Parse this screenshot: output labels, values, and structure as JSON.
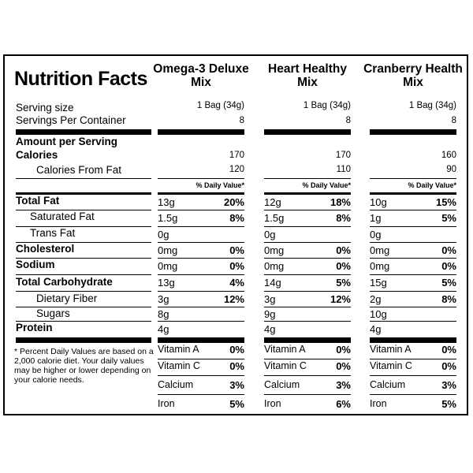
{
  "title": "Nutrition Facts",
  "labels": {
    "serving_size": "Serving size",
    "servings_per_container": "Servings Per Container",
    "amount_per_serving": "Amount per Serving",
    "calories": "Calories",
    "calories_from_fat": "Calories From Fat",
    "total_fat": "Total Fat",
    "saturated_fat": "Saturated Fat",
    "trans_fat": "Trans Fat",
    "cholesterol": "Cholesterol",
    "sodium": "Sodium",
    "total_carbohydrate": "Total Carbohydrate",
    "dietary_fiber": "Dietary Fiber",
    "sugars": "Sugars",
    "protein": "Protein"
  },
  "footnote": "* Percent Daily Values are based on a 2,000 calorie diet. Your daily values may be higher or lower depending on your calorie needs.",
  "products": [
    {
      "name": "Omega-3 Deluxe Mix",
      "serving_size": "1 Bag (34g)",
      "servings": "8",
      "calories": "170",
      "calories_from_fat": "120",
      "dv_header": "% Daily Value*",
      "total_fat": "13g",
      "total_fat_dv": "20%",
      "saturated_fat": "1.5g",
      "saturated_fat_dv": "8%",
      "trans_fat": "0g",
      "cholesterol": "0mg",
      "cholesterol_dv": "0%",
      "sodium": "0mg",
      "sodium_dv": "0%",
      "total_carbohydrate": "13g",
      "total_carbohydrate_dv": "4%",
      "dietary_fiber": "3g",
      "dietary_fiber_dv": "12%",
      "sugars": "8g",
      "protein": "4g",
      "vitamins": [
        {
          "name": "Vitamin A",
          "dv": "0%"
        },
        {
          "name": "Vitamin C",
          "dv": "0%"
        },
        {
          "name": "Calcium",
          "dv": "3%"
        },
        {
          "name": "Iron",
          "dv": "5%"
        }
      ]
    },
    {
      "name": "Heart Healthy Mix",
      "serving_size": "1 Bag (34g)",
      "servings": "8",
      "calories": "170",
      "calories_from_fat": "110",
      "dv_header": "% Daily Value*",
      "total_fat": "12g",
      "total_fat_dv": "18%",
      "saturated_fat": "1.5g",
      "saturated_fat_dv": "8%",
      "trans_fat": "0g",
      "cholesterol": "0mg",
      "cholesterol_dv": "0%",
      "sodium": "0mg",
      "sodium_dv": "0%",
      "total_carbohydrate": "14g",
      "total_carbohydrate_dv": "5%",
      "dietary_fiber": "3g",
      "dietary_fiber_dv": "12%",
      "sugars": "9g",
      "protein": "4g",
      "vitamins": [
        {
          "name": "Vitamin A",
          "dv": "0%"
        },
        {
          "name": "Vitamin C",
          "dv": "0%"
        },
        {
          "name": "Calcium",
          "dv": "3%"
        },
        {
          "name": "Iron",
          "dv": "6%"
        }
      ]
    },
    {
      "name": "Cranberry Health Mix",
      "serving_size": "1 Bag (34g)",
      "servings": "8",
      "calories": "160",
      "calories_from_fat": "90",
      "dv_header": "% Daily Value*",
      "total_fat": "10g",
      "total_fat_dv": "15%",
      "saturated_fat": "1g",
      "saturated_fat_dv": "5%",
      "trans_fat": "0g",
      "cholesterol": "0mg",
      "cholesterol_dv": "0%",
      "sodium": "0mg",
      "sodium_dv": "0%",
      "total_carbohydrate": "15g",
      "total_carbohydrate_dv": "5%",
      "dietary_fiber": "2g",
      "dietary_fiber_dv": "8%",
      "sugars": "10g",
      "protein": "4g",
      "vitamins": [
        {
          "name": "Vitamin A",
          "dv": "0%"
        },
        {
          "name": "Vitamin C",
          "dv": "0%"
        },
        {
          "name": "Calcium",
          "dv": "3%"
        },
        {
          "name": "Iron",
          "dv": "5%"
        }
      ]
    }
  ]
}
